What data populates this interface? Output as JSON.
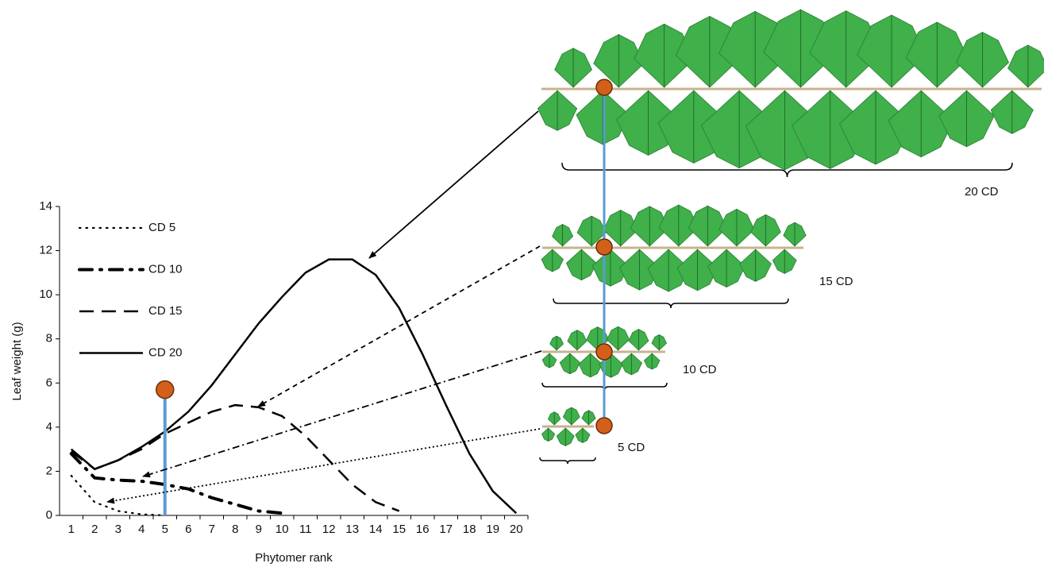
{
  "chart_data": {
    "type": "line",
    "y_label": "Leaf weight (g)",
    "x_label": "Phytomer rank",
    "categories": [
      "1",
      "2",
      "3",
      "4",
      "5",
      "6",
      "7",
      "8",
      "9",
      "10",
      "11",
      "12",
      "13",
      "14",
      "15",
      "16",
      "17",
      "18",
      "19",
      "20"
    ],
    "ylim": [
      0,
      14
    ],
    "yticks": [
      0,
      2,
      4,
      6,
      8,
      10,
      12,
      14
    ],
    "series": [
      {
        "name": "CD 5",
        "color": "#000000",
        "style": "dotted",
        "values": [
          1.8,
          0.6,
          0.2,
          0.05,
          0,
          null,
          null,
          null,
          null,
          null,
          null,
          null,
          null,
          null,
          null,
          null,
          null,
          null,
          null,
          null
        ]
      },
      {
        "name": "CD 10",
        "color": "#000000",
        "style": "dash-dot",
        "values": [
          2.8,
          1.7,
          1.6,
          1.55,
          1.4,
          1.2,
          0.8,
          0.5,
          0.2,
          0.1,
          null,
          null,
          null,
          null,
          null,
          null,
          null,
          null,
          null,
          null
        ]
      },
      {
        "name": "CD 15",
        "color": "#000000",
        "style": "dashed",
        "values": [
          2.9,
          2.1,
          2.5,
          3.0,
          3.7,
          4.2,
          4.7,
          5.0,
          4.9,
          4.5,
          3.6,
          2.5,
          1.4,
          0.6,
          0.2,
          null,
          null,
          null,
          null,
          null
        ]
      },
      {
        "name": "CD 20",
        "color": "#000000",
        "style": "solid",
        "values": [
          3.0,
          2.1,
          2.5,
          3.1,
          3.8,
          4.7,
          5.9,
          7.3,
          8.7,
          9.9,
          11.0,
          11.6,
          11.6,
          10.9,
          9.4,
          7.3,
          5.0,
          2.8,
          1.1,
          0.1
        ]
      }
    ],
    "highlight": {
      "x": "5",
      "y": 5.7,
      "color": "#5b9bd5"
    }
  },
  "diagram": {
    "labels": [
      "20 CD",
      "15 CD",
      "10 CD",
      "5 CD"
    ]
  }
}
